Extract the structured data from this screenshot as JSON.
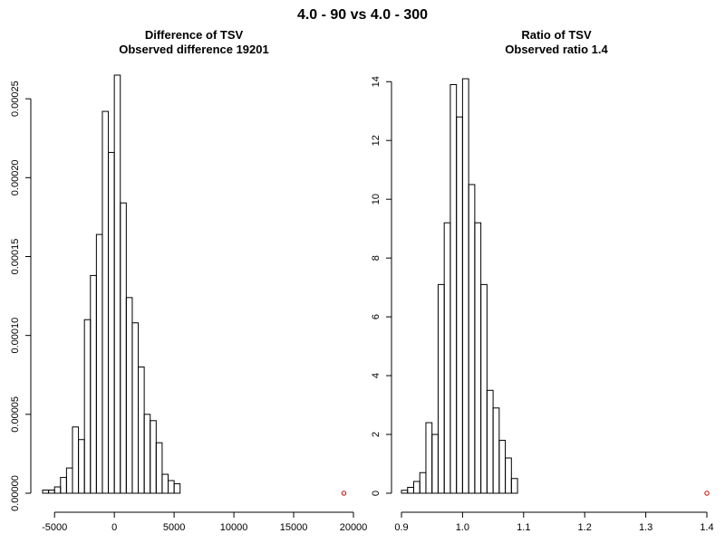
{
  "title": "4.0 - 90 vs 4.0 - 300",
  "chart_data": [
    {
      "type": "histogram",
      "title": "Difference of TSV",
      "subtitle": "Observed difference 19201",
      "xlim": [
        -6000,
        20000
      ],
      "ylim": [
        0,
        0.000265
      ],
      "xticks": [
        -5000,
        0,
        5000,
        10000,
        15000,
        20000
      ],
      "xtick_labels": [
        "-5000",
        "0",
        "5000",
        "10000",
        "15000",
        "20000"
      ],
      "yticks": [
        0,
        5e-05,
        0.0001,
        0.00015,
        0.0002,
        0.00025
      ],
      "ytick_labels": [
        "0.00000",
        "0.00005",
        "0.00010",
        "0.00015",
        "0.00020",
        "0.00025"
      ],
      "bin_edges": [
        -6000,
        -5500,
        -5000,
        -4500,
        -4000,
        -3500,
        -3000,
        -2500,
        -2000,
        -1500,
        -1000,
        -500,
        0,
        500,
        1000,
        1500,
        2000,
        2500,
        3000,
        3500,
        4000,
        4500,
        5000,
        5500
      ],
      "densities": [
        2e-06,
        2e-06,
        4e-06,
        1e-05,
        1.6e-05,
        4.2e-05,
        3.4e-05,
        0.00011,
        0.000138,
        0.000164,
        0.000242,
        0.000216,
        0.000265,
        0.000184,
        0.000124,
        0.000108,
        8e-05,
        5e-05,
        4.6e-05,
        3.2e-05,
        1.2e-05,
        8e-06,
        6e-06
      ],
      "observed_point": {
        "x": 19201,
        "y": 0,
        "color": "#cc0000"
      }
    },
    {
      "type": "histogram",
      "title": "Ratio of TSV",
      "subtitle": "Observed ratio 1.4",
      "xlim": [
        0.9,
        1.4
      ],
      "ylim": [
        0,
        14.1
      ],
      "xticks": [
        0.9,
        1.0,
        1.1,
        1.2,
        1.3,
        1.4
      ],
      "xtick_labels": [
        "0.9",
        "1.0",
        "1.1",
        "1.2",
        "1.3",
        "1.4"
      ],
      "yticks": [
        0,
        2,
        4,
        6,
        8,
        10,
        12,
        14
      ],
      "ytick_labels": [
        "0",
        "2",
        "4",
        "6",
        "8",
        "10",
        "12",
        "14"
      ],
      "bin_edges": [
        0.9,
        0.91,
        0.92,
        0.93,
        0.94,
        0.95,
        0.96,
        0.97,
        0.98,
        0.99,
        1.0,
        1.01,
        1.02,
        1.03,
        1.04,
        1.05,
        1.06,
        1.07,
        1.08,
        1.09
      ],
      "densities": [
        0.1,
        0.2,
        0.4,
        0.7,
        2.4,
        2.0,
        7.1,
        9.2,
        13.9,
        12.8,
        14.1,
        10.5,
        9.2,
        7.1,
        3.5,
        2.9,
        1.8,
        1.2,
        0.5
      ],
      "observed_point": {
        "x": 1.4,
        "y": 0,
        "color": "#cc0000"
      }
    }
  ]
}
